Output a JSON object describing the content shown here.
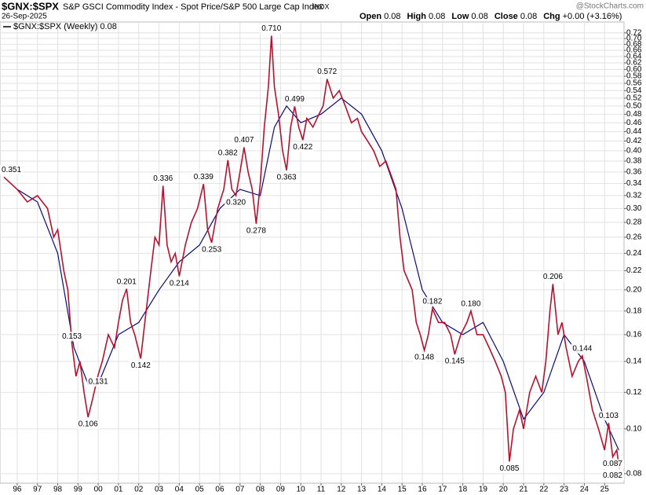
{
  "chart_data": {
    "type": "line",
    "title": "$GNX:$SPX",
    "subtitle": "S&P GSCI Commodity Index - Spot Price/S&P 500 Large Cap Index",
    "exchange": "INDX",
    "date": "26-Sep-2025",
    "watermark": "@StockCharts.com",
    "quote": [
      {
        "label": "Open",
        "value": "0.08"
      },
      {
        "label": "High",
        "value": "0.08"
      },
      {
        "label": "Low",
        "value": "0.08"
      },
      {
        "label": "Close",
        "value": "0.08"
      },
      {
        "label": "Chg",
        "value": "+0.00 (+3.16%)"
      }
    ],
    "log_scale": true,
    "grid": true,
    "xlim": [
      1995.15,
      2025.96
    ],
    "ylim": [
      0.0763,
      0.76
    ],
    "xticks": [
      {
        "value": 1996,
        "label": "96"
      },
      {
        "value": 1997,
        "label": "97"
      },
      {
        "value": 1998,
        "label": "98"
      },
      {
        "value": 1999,
        "label": "99"
      },
      {
        "value": 2000,
        "label": "00"
      },
      {
        "value": 2001,
        "label": "01"
      },
      {
        "value": 2002,
        "label": "02"
      },
      {
        "value": 2003,
        "label": "03"
      },
      {
        "value": 2004,
        "label": "04"
      },
      {
        "value": 2005,
        "label": "05"
      },
      {
        "value": 2006,
        "label": "06"
      },
      {
        "value": 2007,
        "label": "07"
      },
      {
        "value": 2008,
        "label": "08"
      },
      {
        "value": 2009,
        "label": "09"
      },
      {
        "value": 2010,
        "label": "10"
      },
      {
        "value": 2011,
        "label": "11"
      },
      {
        "value": 2012,
        "label": "12"
      },
      {
        "value": 2013,
        "label": "13"
      },
      {
        "value": 2014,
        "label": "14"
      },
      {
        "value": 2015,
        "label": "15"
      },
      {
        "value": 2016,
        "label": "16"
      },
      {
        "value": 2017,
        "label": "17"
      },
      {
        "value": 2018,
        "label": "18"
      },
      {
        "value": 2019,
        "label": "19"
      },
      {
        "value": 2020,
        "label": "20"
      },
      {
        "value": 2021,
        "label": "21"
      },
      {
        "value": 2022,
        "label": "22"
      },
      {
        "value": 2023,
        "label": "23"
      },
      {
        "value": 2024,
        "label": "24"
      },
      {
        "value": 2025,
        "label": "25"
      }
    ],
    "yticks": [
      0.08,
      {
        "value": 0.1,
        "label": "0.10"
      },
      0.12,
      0.14,
      0.16,
      0.18,
      {
        "value": 0.2,
        "label": "0.20"
      },
      0.22,
      0.24,
      0.26,
      0.28,
      {
        "value": 0.3,
        "label": "0.30"
      },
      0.32,
      0.34,
      0.36,
      0.38,
      {
        "value": 0.4,
        "label": "0.40"
      },
      0.42,
      0.44,
      0.46,
      0.48,
      {
        "value": 0.5,
        "label": "0.50"
      },
      0.52,
      0.54,
      0.56,
      0.58,
      {
        "value": 0.6,
        "label": "0.60"
      },
      0.62,
      0.64,
      0.66,
      0.68,
      {
        "value": 0.7,
        "label": "0.70"
      },
      0.72
    ],
    "series": [
      {
        "name": "$GNX:$SPX (Weekly) 0.08",
        "color": "#b5122f",
        "x": [
          1995.34,
          1996.0,
          1996.5,
          1997.0,
          1997.5,
          1997.8,
          1998.0,
          1998.3,
          1998.5,
          1998.7,
          1998.9,
          1999.1,
          1999.3,
          1999.5,
          1999.7,
          2000.0,
          2000.2,
          2000.5,
          2000.8,
          2001.0,
          2001.2,
          2001.4,
          2001.6,
          2001.8,
          2002.1,
          2002.3,
          2002.6,
          2002.8,
          2003.0,
          2003.2,
          2003.4,
          2003.6,
          2003.8,
          2004.0,
          2004.3,
          2004.6,
          2004.9,
          2005.2,
          2005.4,
          2005.6,
          2005.9,
          2006.2,
          2006.4,
          2006.6,
          2006.8,
          2007.0,
          2007.2,
          2007.4,
          2007.6,
          2007.8,
          2008.0,
          2008.2,
          2008.4,
          2008.55,
          2008.7,
          2008.9,
          2009.1,
          2009.3,
          2009.5,
          2009.7,
          2009.9,
          2010.1,
          2010.3,
          2010.6,
          2010.9,
          2011.1,
          2011.3,
          2011.6,
          2011.9,
          2012.2,
          2012.5,
          2012.8,
          2013.0,
          2013.3,
          2013.6,
          2013.9,
          2014.2,
          2014.5,
          2014.7,
          2014.9,
          2015.1,
          2015.3,
          2015.5,
          2015.7,
          2015.9,
          2016.1,
          2016.3,
          2016.5,
          2016.8,
          2017.1,
          2017.4,
          2017.6,
          2017.9,
          2018.2,
          2018.4,
          2018.7,
          2019.0,
          2019.3,
          2019.6,
          2019.9,
          2020.1,
          2020.3,
          2020.5,
          2020.8,
          2021.0,
          2021.3,
          2021.6,
          2021.9,
          2022.1,
          2022.3,
          2022.45,
          2022.7,
          2022.9,
          2023.1,
          2023.4,
          2023.7,
          2023.9,
          2024.1,
          2024.4,
          2024.7,
          2025.0,
          2025.2,
          2025.4,
          2025.6,
          2025.73
        ],
        "values": [
          0.351,
          0.33,
          0.31,
          0.32,
          0.3,
          0.26,
          0.27,
          0.22,
          0.2,
          0.153,
          0.13,
          0.14,
          0.12,
          0.106,
          0.115,
          0.131,
          0.14,
          0.16,
          0.15,
          0.17,
          0.19,
          0.201,
          0.17,
          0.16,
          0.142,
          0.17,
          0.22,
          0.26,
          0.25,
          0.336,
          0.25,
          0.23,
          0.24,
          0.214,
          0.25,
          0.28,
          0.3,
          0.339,
          0.27,
          0.253,
          0.3,
          0.33,
          0.382,
          0.33,
          0.32,
          0.36,
          0.407,
          0.36,
          0.33,
          0.278,
          0.34,
          0.45,
          0.55,
          0.71,
          0.55,
          0.48,
          0.4,
          0.363,
          0.45,
          0.499,
          0.45,
          0.422,
          0.47,
          0.45,
          0.48,
          0.5,
          0.572,
          0.52,
          0.54,
          0.5,
          0.46,
          0.47,
          0.44,
          0.42,
          0.4,
          0.37,
          0.38,
          0.35,
          0.33,
          0.26,
          0.22,
          0.21,
          0.2,
          0.17,
          0.16,
          0.148,
          0.16,
          0.182,
          0.17,
          0.17,
          0.16,
          0.145,
          0.16,
          0.17,
          0.18,
          0.16,
          0.16,
          0.15,
          0.14,
          0.13,
          0.12,
          0.085,
          0.1,
          0.11,
          0.1,
          0.12,
          0.13,
          0.12,
          0.14,
          0.18,
          0.206,
          0.16,
          0.17,
          0.15,
          0.13,
          0.14,
          0.144,
          0.13,
          0.11,
          0.1,
          0.09,
          0.103,
          0.087,
          0.09,
          0.082
        ]
      },
      {
        "color": "#0a0a78",
        "x": [
          1996.0,
          1997.0,
          1998.0,
          1998.8,
          1999.5,
          2000.0,
          2001.0,
          2002.0,
          2003.0,
          2004.0,
          2005.0,
          2006.0,
          2007.0,
          2008.0,
          2008.7,
          2009.3,
          2010.0,
          2011.0,
          2012.0,
          2013.0,
          2014.0,
          2015.0,
          2016.0,
          2017.0,
          2018.0,
          2019.0,
          2020.0,
          2021.0,
          2022.0,
          2023.0,
          2024.0,
          2025.0,
          2025.7
        ],
        "values": [
          0.33,
          0.31,
          0.24,
          0.15,
          0.125,
          0.125,
          0.16,
          0.17,
          0.2,
          0.23,
          0.25,
          0.3,
          0.33,
          0.32,
          0.45,
          0.5,
          0.46,
          0.48,
          0.52,
          0.48,
          0.4,
          0.3,
          0.2,
          0.17,
          0.16,
          0.17,
          0.14,
          0.105,
          0.12,
          0.16,
          0.14,
          0.105,
          0.09
        ]
      }
    ],
    "annotations": [
      {
        "x": 1995.34,
        "y": 0.351,
        "text": "0.351",
        "placement": "above"
      },
      {
        "x": 1998.7,
        "y": 0.153,
        "text": "0.153",
        "placement": "above"
      },
      {
        "x": 1999.5,
        "y": 0.106,
        "text": "0.106",
        "placement": "below"
      },
      {
        "x": 2000.0,
        "y": 0.131,
        "text": "0.131",
        "placement": "below"
      },
      {
        "x": 2001.4,
        "y": 0.201,
        "text": "0.201",
        "placement": "above"
      },
      {
        "x": 2002.1,
        "y": 0.142,
        "text": "0.142",
        "placement": "below"
      },
      {
        "x": 2003.2,
        "y": 0.336,
        "text": "0.336",
        "placement": "above"
      },
      {
        "x": 2004.0,
        "y": 0.214,
        "text": "0.214",
        "placement": "below"
      },
      {
        "x": 2005.2,
        "y": 0.339,
        "text": "0.339",
        "placement": "above"
      },
      {
        "x": 2005.6,
        "y": 0.253,
        "text": "0.253",
        "placement": "below"
      },
      {
        "x": 2006.4,
        "y": 0.382,
        "text": "0.382",
        "placement": "above"
      },
      {
        "x": 2006.8,
        "y": 0.32,
        "text": "0.320",
        "placement": "below"
      },
      {
        "x": 2007.2,
        "y": 0.407,
        "text": "0.407",
        "placement": "above"
      },
      {
        "x": 2007.8,
        "y": 0.278,
        "text": "0.278",
        "placement": "below"
      },
      {
        "x": 2008.55,
        "y": 0.71,
        "text": "0.710",
        "placement": "above"
      },
      {
        "x": 2009.3,
        "y": 0.363,
        "text": "0.363",
        "placement": "below"
      },
      {
        "x": 2009.7,
        "y": 0.499,
        "text": "0.499",
        "placement": "above"
      },
      {
        "x": 2010.1,
        "y": 0.422,
        "text": "0.422",
        "placement": "below"
      },
      {
        "x": 2011.3,
        "y": 0.572,
        "text": "0.572",
        "placement": "above"
      },
      {
        "x": 2016.1,
        "y": 0.148,
        "text": "0.148",
        "placement": "below"
      },
      {
        "x": 2016.5,
        "y": 0.182,
        "text": "0.182",
        "placement": "above"
      },
      {
        "x": 2017.6,
        "y": 0.145,
        "text": "0.145",
        "placement": "below"
      },
      {
        "x": 2018.4,
        "y": 0.18,
        "text": "0.180",
        "placement": "above"
      },
      {
        "x": 2020.3,
        "y": 0.085,
        "text": "0.085",
        "placement": "below"
      },
      {
        "x": 2022.45,
        "y": 0.206,
        "text": "0.206",
        "placement": "above"
      },
      {
        "x": 2023.9,
        "y": 0.144,
        "text": "0.144",
        "placement": "above"
      },
      {
        "x": 2025.2,
        "y": 0.103,
        "text": "0.103",
        "placement": "above"
      },
      {
        "x": 2025.4,
        "y": 0.087,
        "text": "0.087",
        "placement": "below"
      },
      {
        "x": 2025.73,
        "y": 0.082,
        "text": "0.082",
        "placement": "below"
      }
    ]
  }
}
